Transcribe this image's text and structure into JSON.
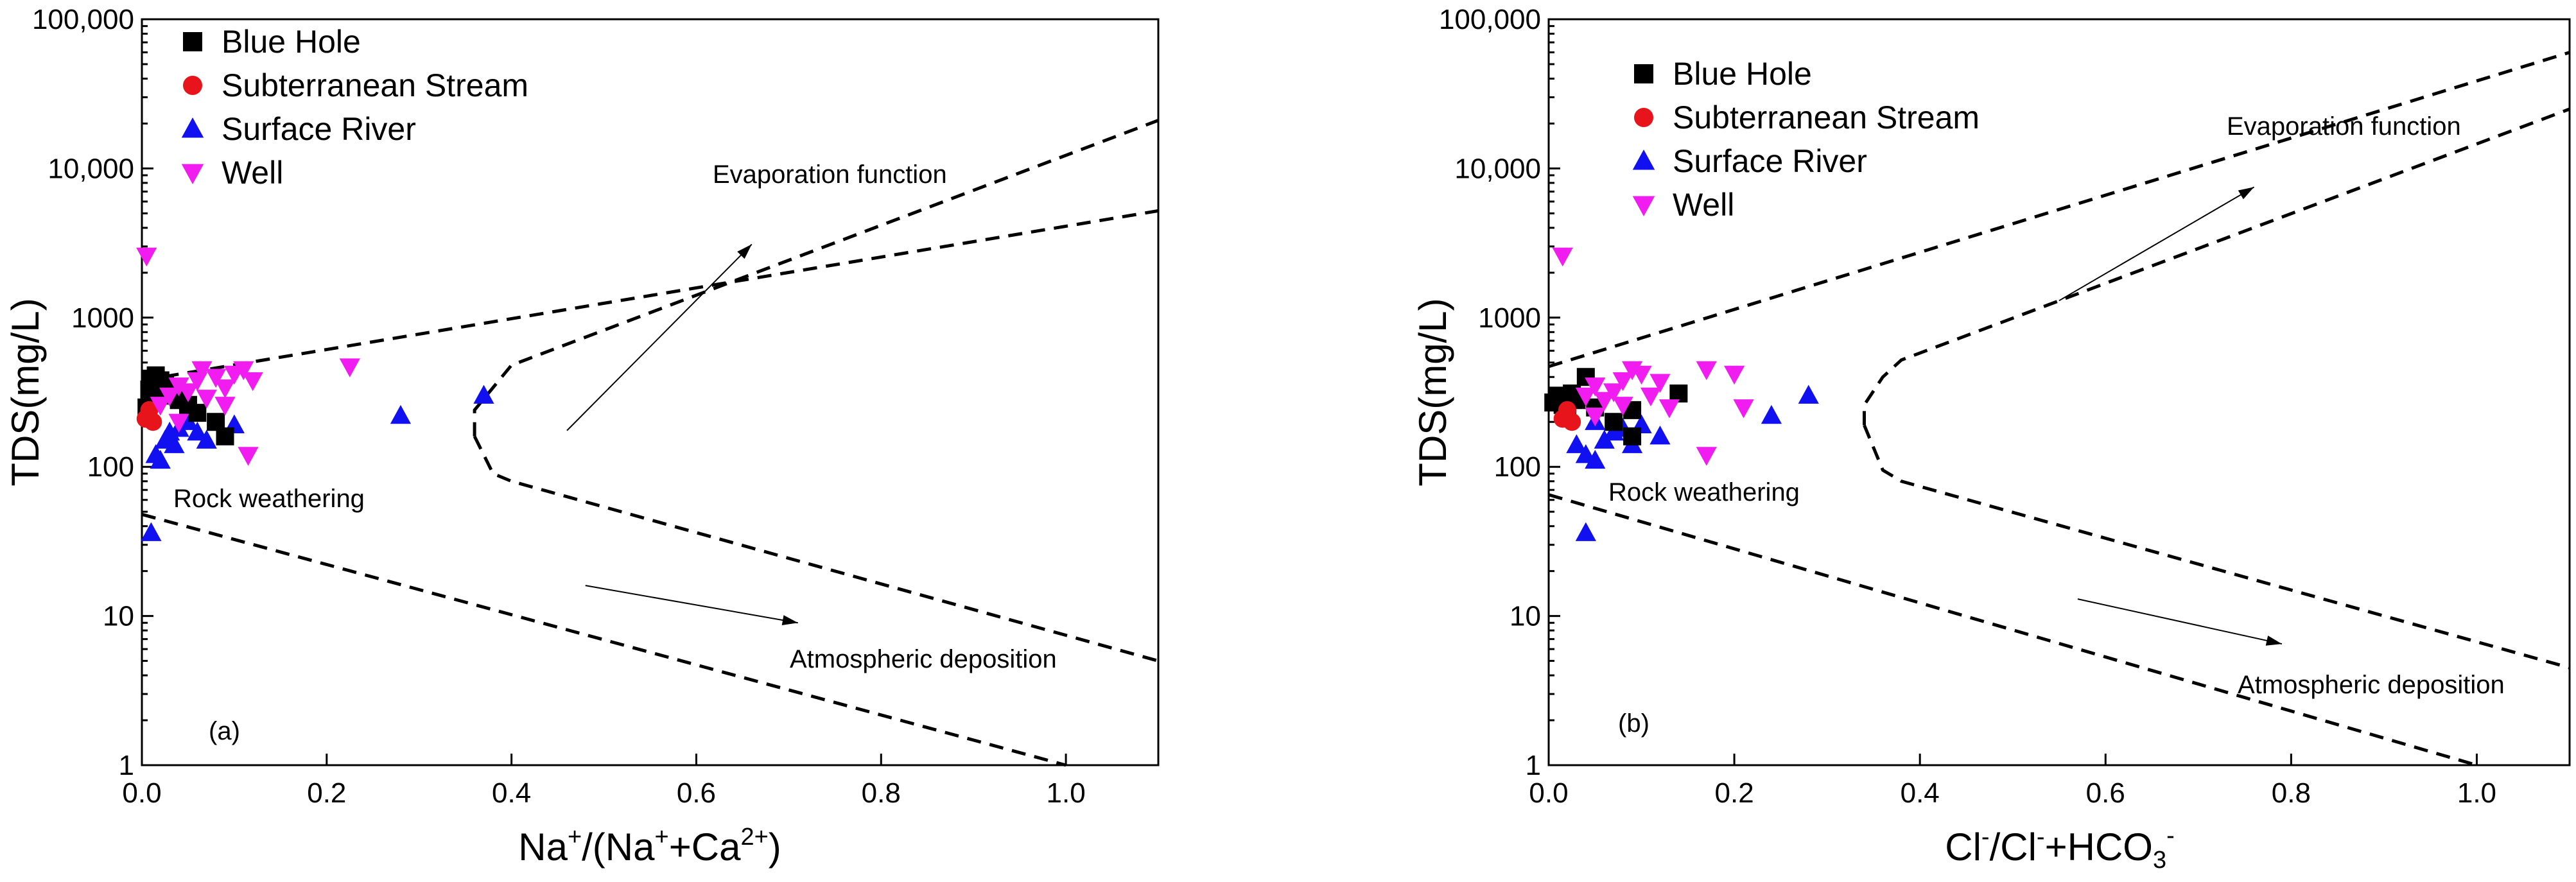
{
  "legend": [
    {
      "name": "Blue Hole",
      "marker": "square",
      "color": "#000000"
    },
    {
      "name": "Subterranean Stream",
      "marker": "circle",
      "color": "#e8141b"
    },
    {
      "name": "Surface River",
      "marker": "triangle-up",
      "color": "#1010f0"
    },
    {
      "name": "Well",
      "marker": "triangle-down",
      "color": "#f01cf0"
    }
  ],
  "colors": {
    "Blue Hole": "#000000",
    "Subterranean Stream": "#e8141b",
    "Surface River": "#1010f0",
    "Well": "#f01cf0"
  },
  "chart_data": [
    {
      "type": "scatter",
      "panel_label": "(a)",
      "title": "",
      "xlabel": {
        "main": "Na",
        "sup1": "+",
        "mid": "/(Na",
        "sup2": "+",
        "mid2": "+Ca",
        "sup3": "2+",
        "end": ")"
      },
      "ylabel": "TDS(mg/L)",
      "xlim": [
        0,
        1.1
      ],
      "ylim": [
        1,
        100000
      ],
      "yscale": "log",
      "x_ticks": [
        "0.0",
        "0.2",
        "0.4",
        "0.6",
        "0.8",
        "1.0"
      ],
      "x_tick_values": [
        0,
        0.2,
        0.4,
        0.6,
        0.8,
        1.0
      ],
      "y_ticks": [
        "1",
        "10",
        "100",
        "1000",
        "10,000",
        "100,000"
      ],
      "y_tick_values": [
        1,
        10,
        100,
        1000,
        10000,
        100000
      ],
      "annotations": {
        "evaporation": "Evaporation function",
        "rock": "Rock weathering",
        "atmospheric": "Atmospheric deposition"
      },
      "boundaries": {
        "upper_outer": [
          [
            0,
            380
          ],
          [
            1.1,
            5200
          ]
        ],
        "upper_inner": [
          [
            0.36,
            160
          ],
          [
            0.36,
            240
          ],
          [
            0.4,
            480
          ],
          [
            1.1,
            21000
          ]
        ],
        "lower_inner": [
          [
            0.36,
            160
          ],
          [
            0.38,
            90
          ],
          [
            0.4,
            80
          ],
          [
            1.1,
            5
          ]
        ],
        "lower_outer": [
          [
            0,
            48
          ],
          [
            1.0,
            1
          ]
        ]
      },
      "arrows": {
        "evaporation": [
          [
            0.46,
            175
          ],
          [
            0.66,
            3100
          ]
        ],
        "atmospheric": [
          [
            0.48,
            16
          ],
          [
            0.71,
            9
          ]
        ]
      },
      "series": [
        {
          "name": "Blue Hole",
          "points": [
            [
              0.005,
              250
            ],
            [
              0.008,
              330
            ],
            [
              0.01,
              390
            ],
            [
              0.015,
              410
            ],
            [
              0.02,
              380
            ],
            [
              0.025,
              360
            ],
            [
              0.03,
              300
            ],
            [
              0.04,
              280
            ],
            [
              0.05,
              260
            ],
            [
              0.06,
              230
            ],
            [
              0.08,
              200
            ],
            [
              0.09,
              160
            ],
            [
              0.012,
              280
            ],
            [
              0.018,
              320
            ]
          ]
        },
        {
          "name": "Subterranean Stream",
          "points": [
            [
              0.004,
              210
            ],
            [
              0.008,
              240
            ],
            [
              0.012,
              200
            ]
          ]
        },
        {
          "name": "Surface River",
          "points": [
            [
              0.01,
              36
            ],
            [
              0.015,
              120
            ],
            [
              0.02,
              110
            ],
            [
              0.025,
              150
            ],
            [
              0.03,
              170
            ],
            [
              0.035,
              140
            ],
            [
              0.04,
              180
            ],
            [
              0.05,
              200
            ],
            [
              0.06,
              170
            ],
            [
              0.07,
              150
            ],
            [
              0.1,
              190
            ],
            [
              0.28,
              220
            ],
            [
              0.37,
              300
            ]
          ]
        },
        {
          "name": "Well",
          "points": [
            [
              0.005,
              2600
            ],
            [
              0.02,
              260
            ],
            [
              0.03,
              300
            ],
            [
              0.04,
              350
            ],
            [
              0.05,
              320
            ],
            [
              0.06,
              380
            ],
            [
              0.065,
              450
            ],
            [
              0.07,
              290
            ],
            [
              0.08,
              400
            ],
            [
              0.09,
              340
            ],
            [
              0.1,
              420
            ],
            [
              0.11,
              450
            ],
            [
              0.115,
              120
            ],
            [
              0.12,
              380
            ],
            [
              0.225,
              470
            ],
            [
              0.04,
              200
            ],
            [
              0.09,
              260
            ]
          ]
        }
      ]
    },
    {
      "type": "scatter",
      "panel_label": "(b)",
      "title": "",
      "xlabel": {
        "main": "Cl",
        "sup1": "-",
        "mid": "/Cl",
        "sup2": "-",
        "mid2": "+HCO",
        "sub": "3",
        "sup3": "-"
      },
      "ylabel": "TDS(mg/L)",
      "xlim": [
        0,
        1.1
      ],
      "ylim": [
        1,
        100000
      ],
      "yscale": "log",
      "x_ticks": [
        "0.0",
        "0.2",
        "0.4",
        "0.6",
        "0.8",
        "1.0"
      ],
      "x_tick_values": [
        0,
        0.2,
        0.4,
        0.6,
        0.8,
        1.0
      ],
      "y_ticks": [
        "1",
        "10",
        "100",
        "1000",
        "10,000",
        "100,000"
      ],
      "y_tick_values": [
        1,
        10,
        100,
        1000,
        10000,
        100000
      ],
      "annotations": {
        "evaporation": "Evaporation function",
        "rock": "Rock weathering",
        "atmospheric": "Atmospheric deposition"
      },
      "boundaries": {
        "upper_outer": [
          [
            0,
            470
          ],
          [
            1.1,
            60000
          ]
        ],
        "upper_inner": [
          [
            0.34,
            190
          ],
          [
            0.34,
            260
          ],
          [
            0.36,
            400
          ],
          [
            0.38,
            520
          ],
          [
            1.1,
            25000
          ]
        ],
        "lower_inner": [
          [
            0.34,
            190
          ],
          [
            0.36,
            95
          ],
          [
            0.38,
            80
          ],
          [
            1.1,
            4.5
          ]
        ],
        "lower_outer": [
          [
            0,
            65
          ],
          [
            1.0,
            1
          ]
        ]
      },
      "arrows": {
        "evaporation": [
          [
            0.55,
            1300
          ],
          [
            0.76,
            7500
          ]
        ],
        "atmospheric": [
          [
            0.57,
            13
          ],
          [
            0.79,
            6.5
          ]
        ]
      },
      "series": [
        {
          "name": "Blue Hole",
          "points": [
            [
              0.005,
              270
            ],
            [
              0.01,
              300
            ],
            [
              0.015,
              260
            ],
            [
              0.02,
              240
            ],
            [
              0.025,
              310
            ],
            [
              0.03,
              280
            ],
            [
              0.04,
              400
            ],
            [
              0.05,
              250
            ],
            [
              0.07,
              200
            ],
            [
              0.09,
              160
            ],
            [
              0.14,
              310
            ],
            [
              0.09,
              240
            ]
          ]
        },
        {
          "name": "Subterranean Stream",
          "points": [
            [
              0.015,
              210
            ],
            [
              0.02,
              240
            ],
            [
              0.025,
              200
            ]
          ]
        },
        {
          "name": "Surface River",
          "points": [
            [
              0.03,
              140
            ],
            [
              0.04,
              36
            ],
            [
              0.04,
              120
            ],
            [
              0.05,
              110
            ],
            [
              0.05,
              200
            ],
            [
              0.06,
              150
            ],
            [
              0.07,
              170
            ],
            [
              0.08,
              180
            ],
            [
              0.09,
              140
            ],
            [
              0.1,
              190
            ],
            [
              0.12,
              160
            ],
            [
              0.24,
              220
            ],
            [
              0.28,
              300
            ]
          ]
        },
        {
          "name": "Well",
          "points": [
            [
              0.015,
              2600
            ],
            [
              0.04,
              300
            ],
            [
              0.05,
              350
            ],
            [
              0.06,
              280
            ],
            [
              0.07,
              320
            ],
            [
              0.08,
              380
            ],
            [
              0.09,
              450
            ],
            [
              0.1,
              420
            ],
            [
              0.11,
              300
            ],
            [
              0.12,
              370
            ],
            [
              0.13,
              250
            ],
            [
              0.17,
              450
            ],
            [
              0.17,
              120
            ],
            [
              0.2,
              420
            ],
            [
              0.21,
              250
            ],
            [
              0.05,
              220
            ],
            [
              0.08,
              260
            ]
          ]
        }
      ]
    }
  ]
}
